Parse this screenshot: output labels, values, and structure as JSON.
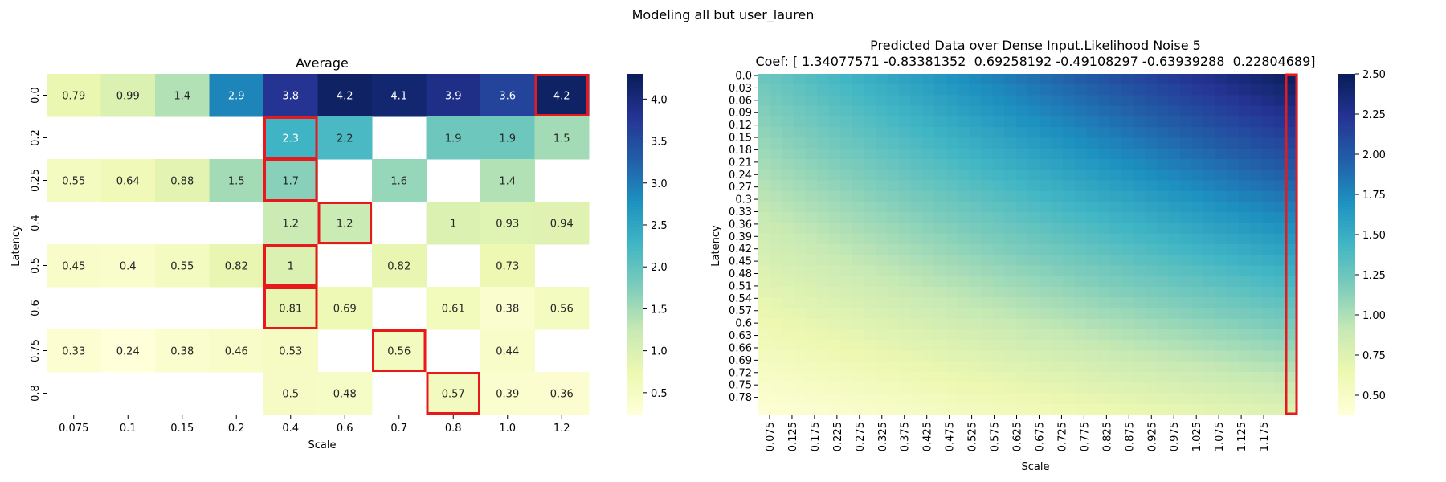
{
  "figure": {
    "suptitle": "Modeling all but user_lauren"
  },
  "chart_data": [
    {
      "type": "heatmap",
      "title": "Average",
      "xlabel": "Scale",
      "ylabel": "Latency",
      "x_categories": [
        "0.075",
        "0.1",
        "0.15",
        "0.2",
        "0.4",
        "0.6",
        "0.7",
        "0.8",
        "1.0",
        "1.2"
      ],
      "y_categories": [
        "0.0",
        "0.2",
        "0.25",
        "0.4",
        "0.5",
        "0.6",
        "0.75",
        "0.8"
      ],
      "values": [
        [
          0.79,
          0.99,
          1.4,
          2.9,
          3.8,
          4.2,
          4.1,
          3.9,
          3.6,
          4.2
        ],
        [
          null,
          null,
          null,
          null,
          2.3,
          2.2,
          null,
          1.9,
          1.9,
          1.5
        ],
        [
          0.55,
          0.64,
          0.88,
          1.5,
          1.7,
          null,
          1.6,
          null,
          1.4,
          null
        ],
        [
          null,
          null,
          null,
          null,
          1.2,
          1.2,
          null,
          1,
          0.93,
          0.94
        ],
        [
          0.45,
          0.4,
          0.55,
          0.82,
          1,
          null,
          0.82,
          null,
          0.73,
          null
        ],
        [
          null,
          null,
          null,
          null,
          0.81,
          0.69,
          null,
          0.61,
          0.38,
          0.56
        ],
        [
          0.33,
          0.24,
          0.38,
          0.46,
          0.53,
          null,
          0.56,
          null,
          0.44,
          null
        ],
        [
          null,
          null,
          null,
          null,
          0.5,
          0.48,
          null,
          0.57,
          0.39,
          0.36
        ]
      ],
      "highlighted_cells": [
        [
          0,
          9
        ],
        [
          1,
          4
        ],
        [
          2,
          4
        ],
        [
          3,
          5
        ],
        [
          4,
          4
        ],
        [
          5,
          4
        ],
        [
          6,
          6
        ],
        [
          7,
          7
        ]
      ],
      "highlight_color": "#e8191c",
      "colormap": "YlGnBu",
      "vmin": 0.24,
      "vmax": 4.3,
      "colorbar_ticks": [
        "1.0",
        "1.5",
        "2.0",
        "2.5",
        "3.0",
        "3.5",
        "4.0"
      ],
      "colorbar_tick_values": [
        1.0,
        1.5,
        2.0,
        2.5,
        3.0,
        3.5,
        4.0
      ],
      "colorbar_extra_ticks": [
        "0.5"
      ],
      "colorbar_extra_tick_values": [
        0.5
      ]
    },
    {
      "type": "heatmap",
      "title_line1": "Predicted Data over Dense Input.Likelihood Noise 5",
      "title_line2": "Coef: [ 1.34077571 -0.83381352  0.69258192 -0.49108297 -0.63939288  0.22804689]",
      "xlabel": "Scale",
      "ylabel": "Latency",
      "x_tick_labels": [
        "0.075",
        "0.125",
        "0.175",
        "0.225",
        "0.275",
        "0.325",
        "0.375",
        "0.425",
        "0.475",
        "0.525",
        "0.575",
        "0.625",
        "0.675",
        "0.725",
        "0.775",
        "0.825",
        "0.875",
        "0.925",
        "0.975",
        "1.025",
        "1.075",
        "1.125",
        "1.175"
      ],
      "y_tick_labels": [
        "0.0",
        "0.03",
        "0.06",
        "0.09",
        "0.12",
        "0.15",
        "0.18",
        "0.21",
        "0.24",
        "0.27",
        "0.3",
        "0.33",
        "0.36",
        "0.39",
        "0.42",
        "0.45",
        "0.48",
        "0.51",
        "0.54",
        "0.57",
        "0.6",
        "0.63",
        "0.66",
        "0.69",
        "0.72",
        "0.75",
        "0.78"
      ],
      "x_range": [
        0.075,
        1.2
      ],
      "y_range": [
        0.0,
        0.8
      ],
      "value_samples": {
        "top_left": 1.25,
        "top_right": 2.5,
        "bottom_left": 0.4,
        "bottom_right": 0.75
      },
      "highlighted_column": "1.2",
      "highlight_color": "#e8191c",
      "colormap": "YlGnBu",
      "vmin": 0.38,
      "vmax": 2.5,
      "colorbar_ticks": [
        "0.50",
        "0.75",
        "1.00",
        "1.25",
        "1.50",
        "1.75",
        "2.00",
        "2.25",
        "2.50"
      ],
      "colorbar_tick_values": [
        0.5,
        0.75,
        1.0,
        1.25,
        1.5,
        1.75,
        2.0,
        2.25,
        2.5
      ]
    }
  ]
}
